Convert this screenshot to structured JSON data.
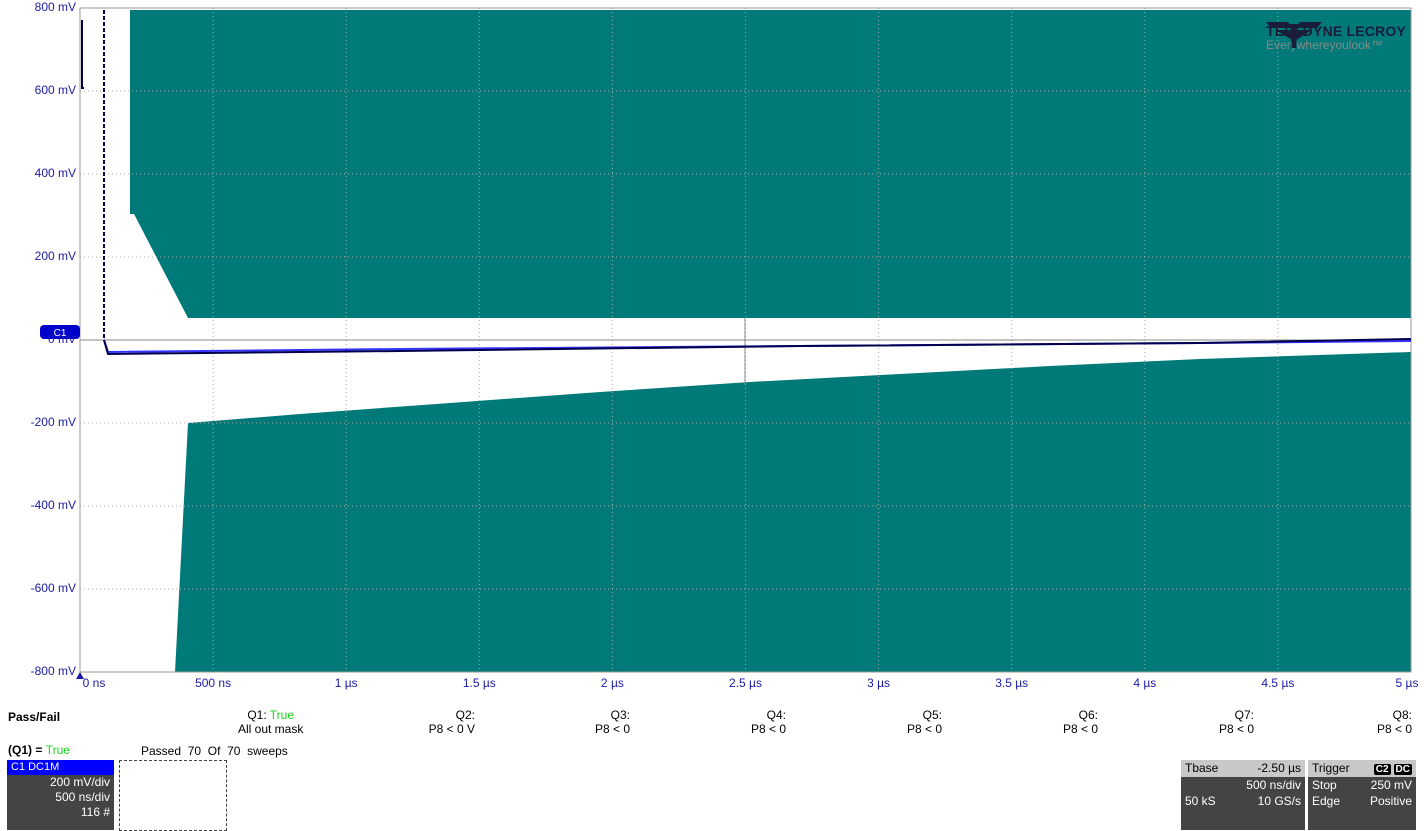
{
  "scope": {
    "y_labels": [
      "800 mV",
      "600 mV",
      "400 mV",
      "200 mV",
      "0 mV",
      "-200 mV",
      "-400 mV",
      "-600 mV",
      "-800 mV"
    ],
    "x_labels": [
      "0 ns",
      "500 ns",
      "1 µs",
      "1.5 µs",
      "2 µs",
      "2.5 µs",
      "3 µs",
      "3.5 µs",
      "4 µs",
      "4.5 µs",
      "5 µs"
    ],
    "channel_marker": "C1",
    "mask_color": "#007a78",
    "trace_color": "#00004d",
    "trace2_color": "#3434ff"
  },
  "logo": {
    "brand": "TELEDYNE LECROY",
    "tagline": "Everywhereyoulook™",
    "icon": "teledyne-logo-icon"
  },
  "passfail": {
    "title": "Pass/Fail",
    "q1": {
      "label": "Q1:",
      "value": "True",
      "desc": "All out mask"
    },
    "queries": [
      {
        "label": "Q2:",
        "cond": "P8 < 0 V"
      },
      {
        "label": "Q3:",
        "cond": "P8 < 0"
      },
      {
        "label": "Q4:",
        "cond": "P8 < 0"
      },
      {
        "label": "Q5:",
        "cond": "P8 < 0"
      },
      {
        "label": "Q6:",
        "cond": "P8 < 0"
      },
      {
        "label": "Q7:",
        "cond": "P8 < 0"
      },
      {
        "label": "Q8:",
        "cond": "P8 < 0"
      }
    ],
    "result_label": "(Q1) =",
    "result_value": "True",
    "passed_label": "Passed",
    "passed_count": "70",
    "of_label": "Of",
    "of_count": "70",
    "sweeps_label": "sweeps"
  },
  "channel_box": {
    "header": "C1 DC1M",
    "vdiv": "200 mV/div",
    "tdiv": "500 ns/div",
    "sweeps": "116 #"
  },
  "tbase": {
    "label": "Tbase",
    "offset": "-2.50 µs",
    "tdiv": "500 ns/div",
    "samples": "50 kS",
    "rate": "10 GS/s"
  },
  "trigger": {
    "label": "Trigger",
    "ch": "C2",
    "coupling": "DC",
    "mode": "Stop",
    "level": "250 mV",
    "type": "Edge",
    "slope": "Positive"
  }
}
